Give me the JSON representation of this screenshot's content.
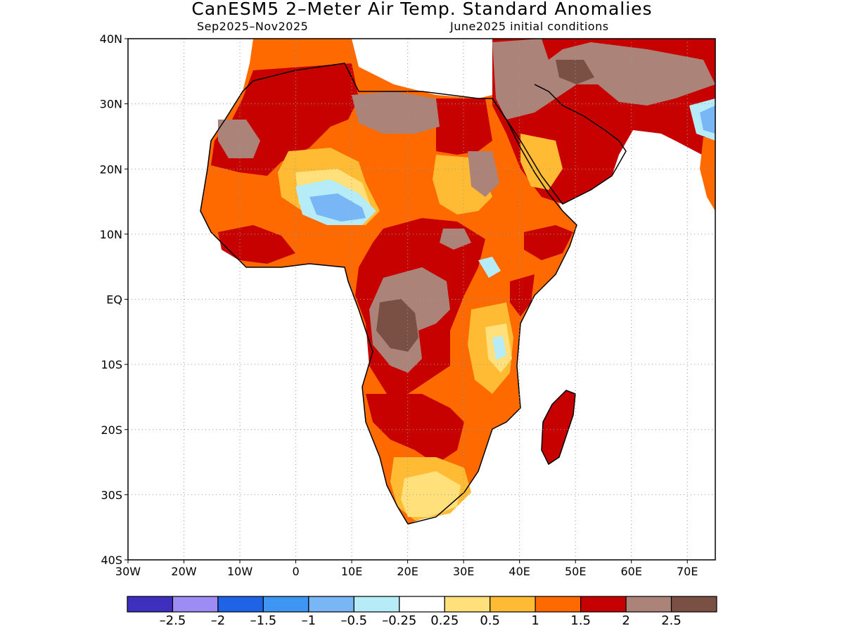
{
  "title": "CanESM5 2–Meter Air Temp. Standard Anomalies",
  "period": "Sep2025–Nov2025",
  "init": "June2025 initial conditions",
  "lat_labels": [
    "40N",
    "30N",
    "20N",
    "10N",
    "EQ",
    "10S",
    "20S",
    "30S",
    "40S"
  ],
  "lon_labels": [
    "30W",
    "20W",
    "10W",
    "0",
    "10E",
    "20E",
    "30E",
    "40E",
    "50E",
    "60E",
    "70E"
  ],
  "colorbar": {
    "colors": [
      "#3f2fbf",
      "#9d8cf4",
      "#1f64e6",
      "#3d97f2",
      "#78b6f6",
      "#b6ecf8",
      "#ffffff",
      "#ffe07a",
      "#ffbb33",
      "#ff6a00",
      "#c70000",
      "#ab8379",
      "#7a4f44"
    ],
    "labels": [
      "–2.5",
      "–2",
      "–1.5",
      "–1",
      "–0.5",
      "–0.25",
      "0.25",
      "0.5",
      "1",
      "1.5",
      "2",
      "2.5"
    ]
  },
  "colors": {
    "brown_light": "#ab8379",
    "brown_dark": "#7a4f44",
    "dark_red": "#c70000",
    "orange_red": "#ff6a00",
    "orange": "#ffbb33",
    "yellow": "#ffe07a",
    "light_blue": "#b6ecf8",
    "mid_blue": "#78b6f6"
  }
}
